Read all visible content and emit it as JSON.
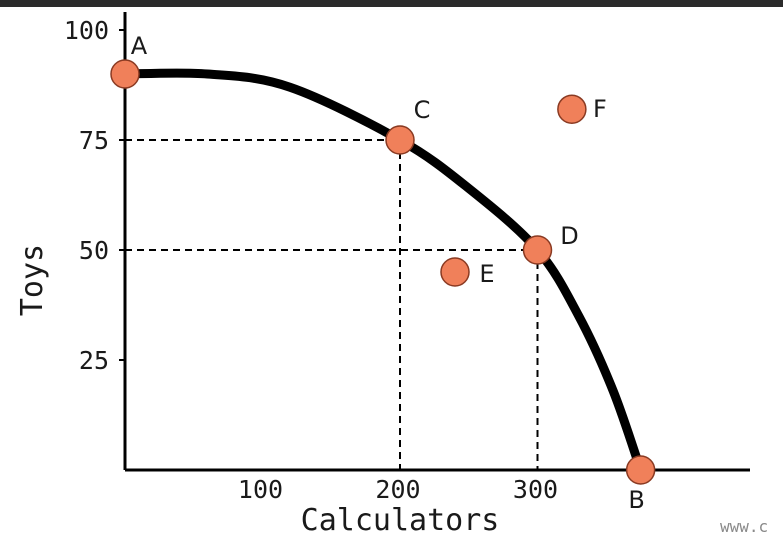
{
  "colors": {
    "frame": "#2b2b2b",
    "axis": "#000000",
    "curve": "#000000",
    "point_fill": "#f0805a",
    "point_stroke": "#8a3a22",
    "text": "#1a1a1a"
  },
  "watermark": "www.c",
  "chart_data": {
    "type": "scatter",
    "title": "",
    "xlabel": "Calculators",
    "ylabel": "Toys",
    "xlim": [
      0,
      450
    ],
    "ylim": [
      0,
      100
    ],
    "grid": false,
    "x_ticks": [
      {
        "value": 100,
        "label": "100"
      },
      {
        "value": 200,
        "label": "200"
      },
      {
        "value": 300,
        "label": "300"
      }
    ],
    "y_ticks": [
      {
        "value": 25,
        "label": "25"
      },
      {
        "value": 50,
        "label": "50"
      },
      {
        "value": 75,
        "label": "75"
      },
      {
        "value": 100,
        "label": "100"
      }
    ],
    "frontier": {
      "type": "line",
      "points": [
        [
          0,
          90
        ],
        [
          60,
          90
        ],
        [
          120,
          87
        ],
        [
          200,
          75
        ],
        [
          250,
          64
        ],
        [
          300,
          50
        ],
        [
          330,
          35
        ],
        [
          355,
          18
        ],
        [
          375,
          0
        ]
      ]
    },
    "points": [
      {
        "label": "A",
        "x": 0,
        "y": 90
      },
      {
        "label": "B",
        "x": 375,
        "y": 0
      },
      {
        "label": "C",
        "x": 200,
        "y": 75
      },
      {
        "label": "D",
        "x": 300,
        "y": 50
      },
      {
        "label": "E",
        "x": 240,
        "y": 45
      },
      {
        "label": "F",
        "x": 325,
        "y": 82
      }
    ],
    "reference_lines": [
      {
        "x": 200,
        "y": 75
      },
      {
        "x": 300,
        "y": 50
      }
    ]
  }
}
